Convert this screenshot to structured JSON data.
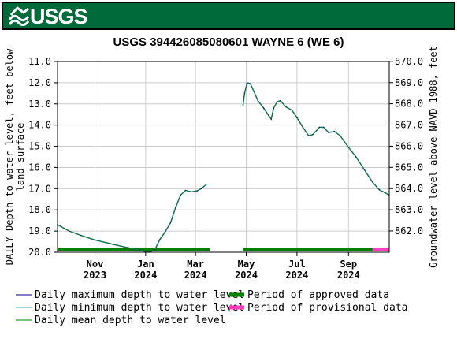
{
  "header": {
    "logo_text": "USGS"
  },
  "colors": {
    "banner": "#006a3a",
    "approved": "#008000",
    "provisional": "#ff40c0",
    "max_line": "#000080",
    "min_line": "#40a0c0",
    "mean_line": "#008000"
  },
  "chart_data": {
    "type": "line",
    "title": "USGS 394426085080601 WAYNE 6 (WE 6)",
    "ylabel_left": "DAILY Depth to water level, feet below land surface",
    "ylabel_right": "Groundwater level above NAVD 1988, feet",
    "ylim_left": [
      11.0,
      20.0
    ],
    "left_inverted": true,
    "ylim_right": [
      860.995,
      869.995
    ],
    "left_ticks": [
      "11.0",
      "12.0",
      "13.0",
      "14.0",
      "15.0",
      "16.0",
      "17.0",
      "18.0",
      "19.0",
      "20.0"
    ],
    "right_ticks": [
      "870.0",
      "869.0",
      "868.0",
      "867.0",
      "866.0",
      "865.0",
      "864.0",
      "863.0",
      "862.0"
    ],
    "x_range": [
      "2023-09-17",
      "2024-10-20"
    ],
    "x_ticks": [
      {
        "date": "2023-11-01",
        "month": "Nov",
        "year": "2023"
      },
      {
        "date": "2024-01-01",
        "month": "Jan",
        "year": "2024"
      },
      {
        "date": "2024-03-01",
        "month": "Mar",
        "year": "2024"
      },
      {
        "date": "2024-05-01",
        "month": "May",
        "year": "2024"
      },
      {
        "date": "2024-07-01",
        "month": "Jul",
        "year": "2024"
      },
      {
        "date": "2024-09-01",
        "month": "Sep",
        "year": "2024"
      }
    ],
    "grid": true,
    "series": [
      {
        "name": "Daily mean depth to water level",
        "segments": [
          [
            {
              "x": "2023-09-17",
              "y": 18.7
            },
            {
              "x": "2023-10-01",
              "y": 19.0
            },
            {
              "x": "2023-10-15",
              "y": 19.2
            },
            {
              "x": "2023-11-01",
              "y": 19.42
            },
            {
              "x": "2023-11-20",
              "y": 19.6
            },
            {
              "x": "2023-12-10",
              "y": 19.78
            },
            {
              "x": "2023-12-25",
              "y": 19.9
            },
            {
              "x": "2024-01-05",
              "y": 20.0
            },
            {
              "x": "2024-01-12",
              "y": 19.88
            },
            {
              "x": "2024-01-18",
              "y": 19.4
            },
            {
              "x": "2024-01-25",
              "y": 19.0
            },
            {
              "x": "2024-01-31",
              "y": 18.6
            },
            {
              "x": "2024-02-06",
              "y": 17.9
            },
            {
              "x": "2024-02-12",
              "y": 17.3
            },
            {
              "x": "2024-02-18",
              "y": 17.08
            },
            {
              "x": "2024-02-25",
              "y": 17.15
            },
            {
              "x": "2024-03-03",
              "y": 17.1
            },
            {
              "x": "2024-03-08",
              "y": 17.0
            },
            {
              "x": "2024-03-14",
              "y": 16.8
            }
          ],
          [
            {
              "x": "2024-04-27",
              "y": 13.1
            },
            {
              "x": "2024-04-29",
              "y": 12.5
            },
            {
              "x": "2024-05-02",
              "y": 12.0
            },
            {
              "x": "2024-05-06",
              "y": 12.05
            },
            {
              "x": "2024-05-10",
              "y": 12.4
            },
            {
              "x": "2024-05-15",
              "y": 12.85
            },
            {
              "x": "2024-05-22",
              "y": 13.2
            },
            {
              "x": "2024-05-28",
              "y": 13.55
            },
            {
              "x": "2024-05-31",
              "y": 13.72
            },
            {
              "x": "2024-06-03",
              "y": 13.2
            },
            {
              "x": "2024-06-07",
              "y": 12.9
            },
            {
              "x": "2024-06-11",
              "y": 12.85
            },
            {
              "x": "2024-06-18",
              "y": 13.15
            },
            {
              "x": "2024-06-25",
              "y": 13.3
            },
            {
              "x": "2024-07-01",
              "y": 13.65
            },
            {
              "x": "2024-07-08",
              "y": 14.1
            },
            {
              "x": "2024-07-15",
              "y": 14.5
            },
            {
              "x": "2024-07-20",
              "y": 14.45
            },
            {
              "x": "2024-07-28",
              "y": 14.1
            },
            {
              "x": "2024-08-02",
              "y": 14.1
            },
            {
              "x": "2024-08-08",
              "y": 14.35
            },
            {
              "x": "2024-08-15",
              "y": 14.3
            },
            {
              "x": "2024-08-22",
              "y": 14.5
            },
            {
              "x": "2024-09-01",
              "y": 15.05
            },
            {
              "x": "2024-09-10",
              "y": 15.5
            },
            {
              "x": "2024-09-20",
              "y": 16.1
            },
            {
              "x": "2024-09-30",
              "y": 16.7
            },
            {
              "x": "2024-10-08",
              "y": 17.05
            },
            {
              "x": "2024-10-20",
              "y": 17.3
            }
          ]
        ]
      }
    ],
    "approval_periods": [
      {
        "status": "approved",
        "start": "2023-09-17",
        "end": "2024-03-18"
      },
      {
        "status": "approved",
        "start": "2024-04-27",
        "end": "2024-09-30"
      },
      {
        "status": "provisional",
        "start": "2024-09-30",
        "end": "2024-10-20"
      }
    ],
    "legend": [
      {
        "key": "max",
        "label": "Daily maximum depth to water level"
      },
      {
        "key": "min",
        "label": "Daily minimum depth to water level"
      },
      {
        "key": "mean",
        "label": "Daily mean depth to water level"
      },
      {
        "key": "approved",
        "label": "Period of approved data"
      },
      {
        "key": "provisional",
        "label": "Period of provisional data"
      }
    ]
  }
}
